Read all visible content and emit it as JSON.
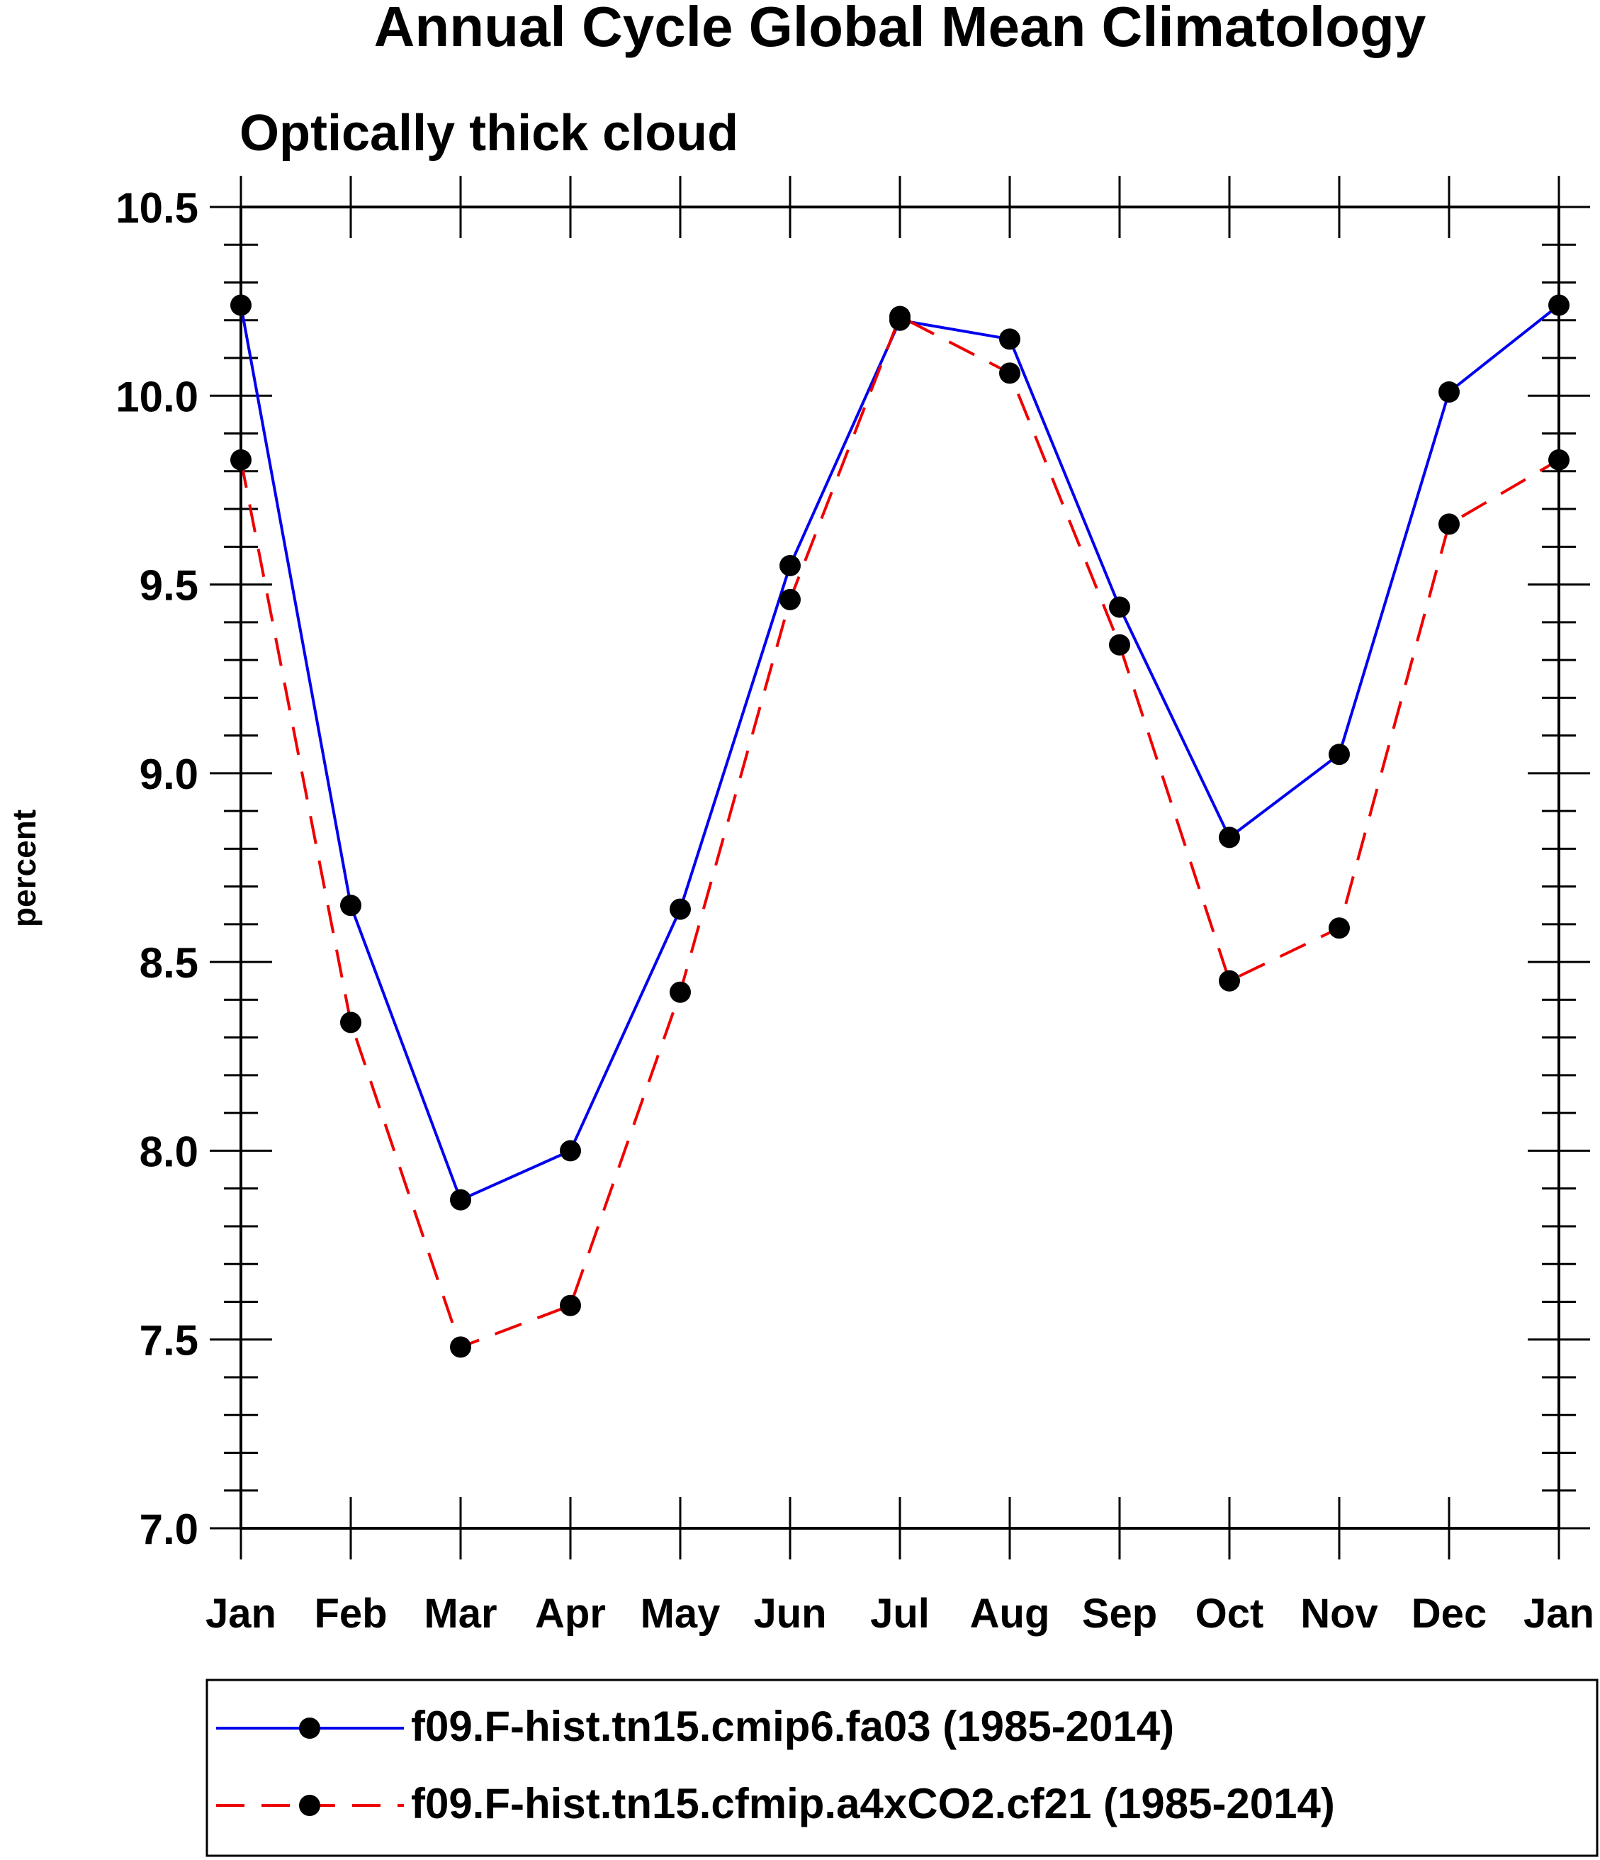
{
  "chart_data": {
    "type": "line",
    "title": "Annual Cycle Global Mean Climatology",
    "subtitle": "Optically thick cloud",
    "xlabel": "",
    "ylabel": "percent",
    "ylim": [
      7.0,
      10.5
    ],
    "yticks": [
      "7.0",
      "7.5",
      "8.0",
      "8.5",
      "9.0",
      "9.5",
      "10.0",
      "10.5"
    ],
    "categories": [
      "Jan",
      "Feb",
      "Mar",
      "Apr",
      "May",
      "Jun",
      "Jul",
      "Aug",
      "Sep",
      "Oct",
      "Nov",
      "Dec",
      "Jan"
    ],
    "series": [
      {
        "name": "f09.F-hist.tn15.cmip6.fa03 (1985-2014)",
        "color": "#0000ee",
        "dash": "solid",
        "values": [
          10.24,
          8.65,
          7.87,
          8.0,
          8.64,
          9.55,
          10.2,
          10.15,
          9.44,
          8.83,
          9.05,
          10.01,
          10.24
        ]
      },
      {
        "name": "f09.F-hist.tn15.cfmip.a4xCO2.cf21 (1985-2014)",
        "color": "#ee0000",
        "dash": "dashed",
        "values": [
          9.83,
          8.34,
          7.48,
          7.59,
          8.42,
          9.46,
          10.21,
          10.06,
          9.34,
          8.45,
          8.59,
          9.66,
          9.83
        ]
      }
    ],
    "marker_color": "#000000",
    "legend_position": "bottom"
  }
}
